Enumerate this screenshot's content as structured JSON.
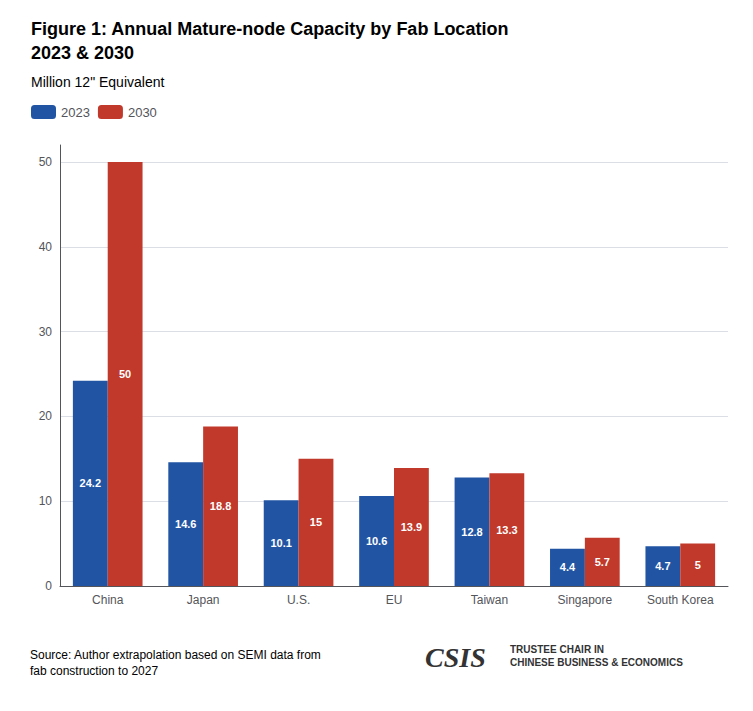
{
  "chart_data": {
    "type": "bar",
    "title": "Figure 1: Annual Mature-node Capacity by Fab Location\n2023 & 2030",
    "subtitle": "Million 12\" Equivalent",
    "categories": [
      "China",
      "Japan",
      "U.S.",
      "EU",
      "Taiwan",
      "Singapore",
      "South Korea"
    ],
    "series": [
      {
        "name": "2023",
        "color": "#2155a3",
        "values": [
          24.2,
          14.6,
          10.1,
          10.6,
          12.8,
          4.4,
          4.7
        ]
      },
      {
        "name": "2030",
        "color": "#c0392b",
        "values": [
          50,
          18.8,
          15,
          13.9,
          13.3,
          5.7,
          5
        ]
      }
    ],
    "ylim": [
      0,
      52
    ],
    "yticks": [
      0,
      10,
      20,
      30,
      40,
      50
    ],
    "grid": true,
    "legend": "upper left",
    "data_labels": true,
    "annotations": [
      "Source: Author extrapolation based on SEMI data from\nfab construction to 2027",
      "CSIS",
      "TRUSTEE CHAIR IN\nCHINESE BUSINESS & ECONOMICS"
    ]
  }
}
